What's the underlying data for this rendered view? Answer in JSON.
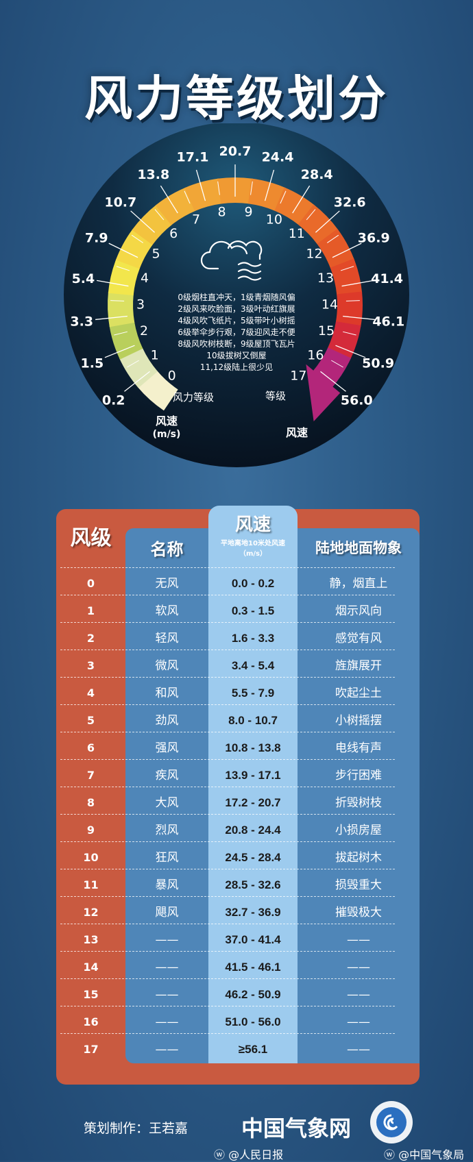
{
  "title": "风力等级划分",
  "gauge": {
    "speed_labels": [
      "0.2",
      "1.5",
      "3.3",
      "5.4",
      "7.9",
      "10.7",
      "13.8",
      "17.1",
      "20.7",
      "24.4",
      "28.4",
      "32.6",
      "36.9",
      "41.4",
      "46.1",
      "50.9",
      "56.0"
    ],
    "level_labels": [
      "0",
      "1",
      "2",
      "3",
      "4",
      "5",
      "6",
      "7",
      "8",
      "9",
      "10",
      "11",
      "12",
      "13",
      "14",
      "15",
      "16",
      "17"
    ],
    "level_colors": [
      "#f4f0cc",
      "#dfe6b8",
      "#b9cf5c",
      "#dbe061",
      "#f2e64c",
      "#f4d846",
      "#f3c33e",
      "#f2b23a",
      "#f1a637",
      "#f09a33",
      "#ee8a2f",
      "#ec7a2c",
      "#e96a2a",
      "#e55a28",
      "#e24a28",
      "#dd3a2a",
      "#d42a3a",
      "#b3267a"
    ],
    "rhyme": [
      "0级烟柱直冲天，1级青烟随风偏",
      "2级风来吹脸面，3级叶动红旗展",
      "4级风吹飞纸片，5级带叶小树摇",
      "6级举伞步行艰，7级迎风走不便",
      "8级风吹树枝断，9级屋顶飞瓦片",
      "10级拔树又倒屋",
      "11,12级陆上很少见"
    ],
    "label_level_left": "风力等级",
    "label_level_right": "等级",
    "label_speed_left": "风速",
    "label_speed_unit": "(m/s)",
    "label_speed_right": "风速",
    "icon": "cloud-wind-icon"
  },
  "table": {
    "headers": {
      "level": "风级",
      "name": "名称",
      "speed": "风速",
      "speed_sub": "平地离地10米处风速",
      "speed_unit": "（m/s）",
      "land": "陆地地面物象"
    },
    "rows": [
      {
        "level": "0",
        "name": "无风",
        "speed": "0.0 - 0.2",
        "land": "静，烟直上"
      },
      {
        "level": "1",
        "name": "软风",
        "speed": "0.3 - 1.5",
        "land": "烟示风向"
      },
      {
        "level": "2",
        "name": "轻风",
        "speed": "1.6 - 3.3",
        "land": "感觉有风"
      },
      {
        "level": "3",
        "name": "微风",
        "speed": "3.4 - 5.4",
        "land": "旌旗展开"
      },
      {
        "level": "4",
        "name": "和风",
        "speed": "5.5 - 7.9",
        "land": "吹起尘土"
      },
      {
        "level": "5",
        "name": "劲风",
        "speed": "8.0 - 10.7",
        "land": "小树摇摆"
      },
      {
        "level": "6",
        "name": "强风",
        "speed": "10.8 - 13.8",
        "land": "电线有声"
      },
      {
        "level": "7",
        "name": "疾风",
        "speed": "13.9 - 17.1",
        "land": "步行困难"
      },
      {
        "level": "8",
        "name": "大风",
        "speed": "17.2 - 20.7",
        "land": "折毁树枝"
      },
      {
        "level": "9",
        "name": "烈风",
        "speed": "20.8 - 24.4",
        "land": "小损房屋"
      },
      {
        "level": "10",
        "name": "狂风",
        "speed": "24.5 - 28.4",
        "land": "拔起树木"
      },
      {
        "level": "11",
        "name": "暴风",
        "speed": "28.5 - 32.6",
        "land": "损毁重大"
      },
      {
        "level": "12",
        "name": "飓风",
        "speed": "32.7 - 36.9",
        "land": "摧毁极大"
      },
      {
        "level": "13",
        "name": "——",
        "speed": "37.0 - 41.4",
        "land": "——"
      },
      {
        "level": "14",
        "name": "——",
        "speed": "41.5 - 46.1",
        "land": "——"
      },
      {
        "level": "15",
        "name": "——",
        "speed": "46.2 - 50.9",
        "land": "——"
      },
      {
        "level": "16",
        "name": "——",
        "speed": "51.0 - 56.0",
        "land": "——"
      },
      {
        "level": "17",
        "name": "——",
        "speed": "≥56.1",
        "land": "——"
      }
    ]
  },
  "footer": {
    "credit": "策划制作：王若嘉",
    "brand": "中国气象网",
    "weibo1": "@人民日报",
    "weibo2": "@中国气象局",
    "logo_text": "中国气象局"
  },
  "colors": {
    "accent_orange": "#c95a40",
    "panel_blue": "#4f86b8",
    "speed_blue": "#9dcbee"
  }
}
